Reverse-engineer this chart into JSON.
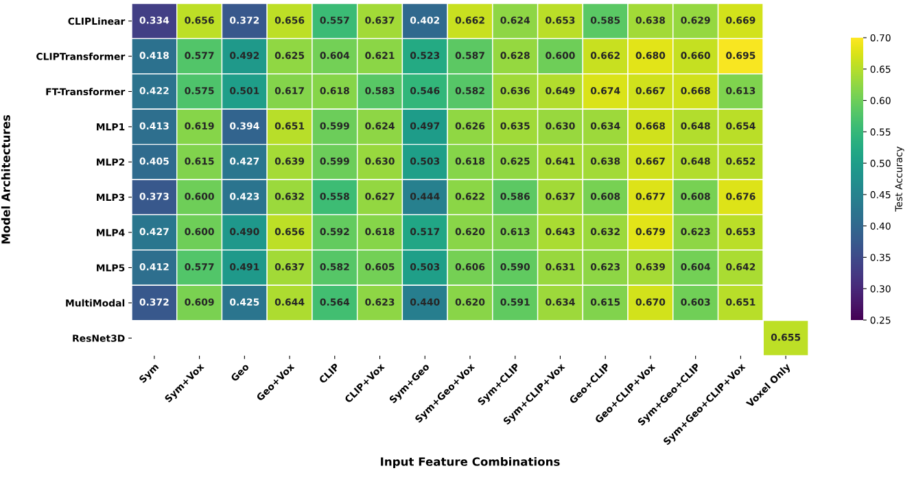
{
  "chart_data": {
    "type": "heatmap",
    "xlabel": "Input Feature Combinations",
    "ylabel": "Model Architectures",
    "clabel": "Test Accuracy",
    "categories": [
      "Sym",
      "Sym+Vox",
      "Geo",
      "Geo+Vox",
      "CLIP",
      "CLIP+Vox",
      "Sym+Geo",
      "Sym+Geo+Vox",
      "Sym+CLIP",
      "Sym+CLIP+Vox",
      "Geo+CLIP",
      "Geo+CLIP+Vox",
      "Sym+Geo+CLIP",
      "Sym+Geo+CLIP+Vox",
      "Voxel Only"
    ],
    "y_categories": [
      "CLIPLinear",
      "CLIPTransformer",
      "FT-Transformer",
      "MLP1",
      "MLP2",
      "MLP3",
      "MLP4",
      "MLP5",
      "MultiModal",
      "ResNet3D"
    ],
    "cells": [
      [
        0.334,
        0.656,
        0.372,
        0.656,
        0.557,
        0.637,
        0.402,
        0.662,
        0.624,
        0.653,
        0.585,
        0.638,
        0.629,
        0.669,
        null
      ],
      [
        0.418,
        0.577,
        0.492,
        0.625,
        0.604,
        0.621,
        0.523,
        0.587,
        0.628,
        0.6,
        0.662,
        0.68,
        0.66,
        0.695,
        null
      ],
      [
        0.422,
        0.575,
        0.501,
        0.617,
        0.618,
        0.583,
        0.546,
        0.582,
        0.636,
        0.649,
        0.674,
        0.667,
        0.668,
        0.613,
        null
      ],
      [
        0.413,
        0.619,
        0.394,
        0.651,
        0.599,
        0.624,
        0.497,
        0.626,
        0.635,
        0.63,
        0.634,
        0.668,
        0.648,
        0.654,
        null
      ],
      [
        0.405,
        0.615,
        0.427,
        0.639,
        0.599,
        0.63,
        0.503,
        0.618,
        0.625,
        0.641,
        0.638,
        0.667,
        0.648,
        0.652,
        null
      ],
      [
        0.373,
        0.6,
        0.423,
        0.632,
        0.558,
        0.627,
        0.444,
        0.622,
        0.586,
        0.637,
        0.608,
        0.677,
        0.608,
        0.676,
        null
      ],
      [
        0.427,
        0.6,
        0.49,
        0.656,
        0.592,
        0.618,
        0.517,
        0.62,
        0.613,
        0.643,
        0.632,
        0.679,
        0.623,
        0.653,
        null
      ],
      [
        0.412,
        0.577,
        0.491,
        0.637,
        0.582,
        0.605,
        0.503,
        0.606,
        0.59,
        0.631,
        0.623,
        0.639,
        0.604,
        0.642,
        null
      ],
      [
        0.372,
        0.609,
        0.425,
        0.644,
        0.564,
        0.623,
        0.44,
        0.62,
        0.591,
        0.634,
        0.615,
        0.67,
        0.603,
        0.651,
        null
      ],
      [
        null,
        null,
        null,
        null,
        null,
        null,
        null,
        null,
        null,
        null,
        null,
        null,
        null,
        null,
        0.655
      ]
    ],
    "cell_labels": [
      [
        "0.334",
        "0.656",
        "0.372",
        "0.656",
        "0.557",
        "0.637",
        "0.402",
        "0.662",
        "0.624",
        "0.653",
        "0.585",
        "0.638",
        "0.629",
        "0.669",
        null
      ],
      [
        "0.418",
        "0.577",
        "0.492",
        "0.625",
        "0.604",
        "0.621",
        "0.523",
        "0.587",
        "0.628",
        "0.600",
        "0.662",
        "0.680",
        "0.660",
        "0.695",
        null
      ],
      [
        "0.422",
        "0.575",
        "0.501",
        "0.617",
        "0.618",
        "0.583",
        "0.546",
        "0.582",
        "0.636",
        "0.649",
        "0.674",
        "0.667",
        "0.668",
        "0.613",
        null
      ],
      [
        "0.413",
        "0.619",
        "0.394",
        "0.651",
        "0.599",
        "0.624",
        "0.497",
        "0.626",
        "0.635",
        "0.630",
        "0.634",
        "0.668",
        "0.648",
        "0.654",
        null
      ],
      [
        "0.405",
        "0.615",
        "0.427",
        "0.639",
        "0.599",
        "0.630",
        "0.503",
        "0.618",
        "0.625",
        "0.641",
        "0.638",
        "0.667",
        "0.648",
        "0.652",
        null
      ],
      [
        "0.373",
        "0.600",
        "0.423",
        "0.632",
        "0.558",
        "0.627",
        "0.444",
        "0.622",
        "0.586",
        "0.637",
        "0.608",
        "0.677",
        "0.608",
        "0.676",
        null
      ],
      [
        "0.427",
        "0.600",
        "0.490",
        "0.656",
        "0.592",
        "0.618",
        "0.517",
        "0.620",
        "0.613",
        "0.643",
        "0.632",
        "0.679",
        "0.623",
        "0.653",
        null
      ],
      [
        "0.412",
        "0.577",
        "0.491",
        "0.637",
        "0.582",
        "0.605",
        "0.503",
        "0.606",
        "0.590",
        "0.631",
        "0.623",
        "0.639",
        "0.604",
        "0.642",
        null
      ],
      [
        "0.372",
        "0.609",
        "0.425",
        "0.644",
        "0.564",
        "0.623",
        "0.440",
        "0.620",
        "0.591",
        "0.634",
        "0.615",
        "0.670",
        "0.603",
        "0.651",
        null
      ],
      [
        null,
        null,
        null,
        null,
        null,
        null,
        null,
        null,
        null,
        null,
        null,
        null,
        null,
        null,
        "0.655"
      ]
    ],
    "clim": [
      0.25,
      0.7
    ],
    "cticks": [
      {
        "value": 0.25,
        "label": "0.25"
      },
      {
        "value": 0.3,
        "label": "0.30"
      },
      {
        "value": 0.35,
        "label": "0.35"
      },
      {
        "value": 0.4,
        "label": "0.40"
      },
      {
        "value": 0.45,
        "label": "0.45"
      },
      {
        "value": 0.5,
        "label": "0.50"
      },
      {
        "value": 0.55,
        "label": "0.55"
      },
      {
        "value": 0.6,
        "label": "0.60"
      },
      {
        "value": 0.65,
        "label": "0.65"
      },
      {
        "value": 0.7,
        "label": "0.70"
      }
    ]
  }
}
